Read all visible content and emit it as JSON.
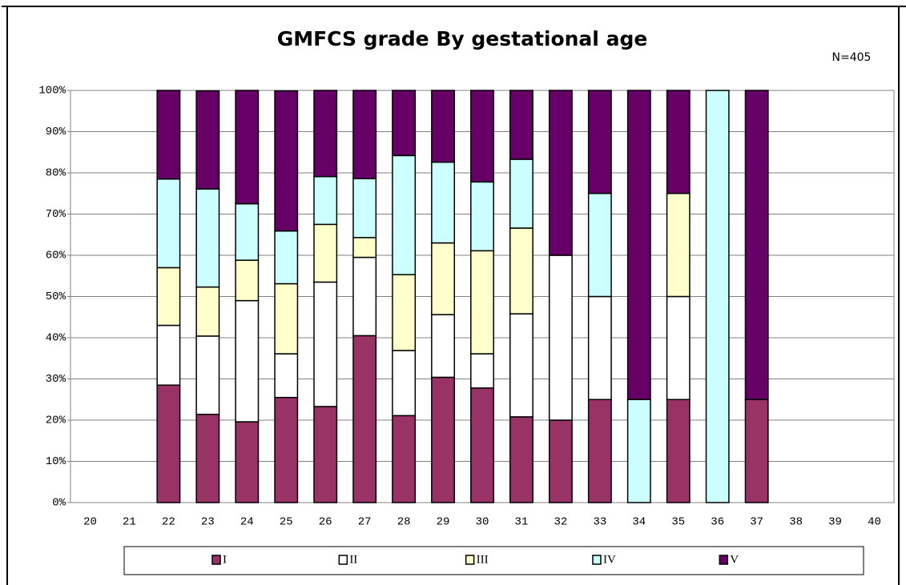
{
  "chart_data": {
    "type": "stacked_bar",
    "title": "GMFCS grade By gestational age",
    "annotation": "N=405",
    "categories": [
      "20",
      "21",
      "22",
      "23",
      "24",
      "25",
      "26",
      "27",
      "28",
      "29",
      "30",
      "31",
      "32",
      "33",
      "34",
      "35",
      "36",
      "37",
      "38",
      "39",
      "40"
    ],
    "series": [
      {
        "name": "I",
        "color": "#993366",
        "values": [
          null,
          null,
          28.5,
          21.4,
          19.6,
          25.5,
          23.3,
          40.5,
          21.1,
          30.4,
          27.8,
          20.8,
          20,
          25,
          0,
          25,
          0,
          25,
          null,
          null,
          null
        ]
      },
      {
        "name": "II",
        "color": "#ffffff",
        "values": [
          null,
          null,
          14.5,
          19.0,
          29.4,
          10.6,
          30.2,
          19.0,
          15.8,
          15.2,
          8.3,
          25.0,
          40,
          25,
          0,
          25,
          0,
          0,
          null,
          null,
          null
        ]
      },
      {
        "name": "III",
        "color": "#ffffcc",
        "values": [
          null,
          null,
          14.0,
          11.9,
          9.8,
          17.0,
          14.0,
          4.8,
          18.4,
          17.4,
          25.0,
          20.8,
          0,
          0,
          0,
          25,
          0,
          0,
          null,
          null,
          null
        ]
      },
      {
        "name": "IV",
        "color": "#ccffff",
        "values": [
          null,
          null,
          21.5,
          23.8,
          13.7,
          12.8,
          11.6,
          14.3,
          28.9,
          19.6,
          16.7,
          16.7,
          0,
          25,
          25,
          0,
          100,
          0,
          null,
          null,
          null
        ]
      },
      {
        "name": "V",
        "color": "#660066",
        "values": [
          null,
          null,
          21.5,
          23.8,
          27.5,
          34.0,
          20.9,
          21.4,
          15.8,
          17.4,
          22.2,
          16.7,
          40,
          25,
          75,
          25,
          0,
          75,
          null,
          null,
          null
        ]
      }
    ],
    "ylim": [
      0,
      100
    ],
    "yticks": [
      {
        "value": 0,
        "label": "0%"
      },
      {
        "value": 10,
        "label": "10%"
      },
      {
        "value": 20,
        "label": "20%"
      },
      {
        "value": 30,
        "label": "30%"
      },
      {
        "value": 40,
        "label": "40%"
      },
      {
        "value": 50,
        "label": "50%"
      },
      {
        "value": 60,
        "label": "60%"
      },
      {
        "value": 70,
        "label": "70%"
      },
      {
        "value": 80,
        "label": "80%"
      },
      {
        "value": 90,
        "label": "90%"
      },
      {
        "value": 100,
        "label": "100%"
      }
    ],
    "grid": true,
    "legend": "bottom"
  }
}
